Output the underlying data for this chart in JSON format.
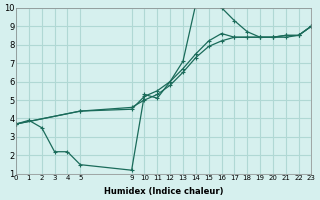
{
  "xlabel": "Humidex (Indice chaleur)",
  "ylabel": "",
  "xlim": [
    0,
    23
  ],
  "ylim": [
    1,
    10
  ],
  "xticks": [
    0,
    1,
    2,
    3,
    4,
    5,
    9,
    10,
    11,
    12,
    13,
    14,
    15,
    16,
    17,
    18,
    19,
    20,
    21,
    22,
    23
  ],
  "yticks": [
    1,
    2,
    3,
    4,
    5,
    6,
    7,
    8,
    9,
    10
  ],
  "bg_color": "#d6f0ee",
  "grid_color": "#b0d8d4",
  "line_color": "#1a6b5a",
  "line1": {
    "x": [
      0,
      1,
      2,
      3,
      4,
      5,
      9,
      10,
      11,
      12,
      13,
      14,
      15,
      16,
      17,
      18,
      19,
      20,
      21,
      22,
      23
    ],
    "y": [
      3.7,
      3.9,
      3.5,
      2.2,
      2.2,
      1.5,
      1.2,
      5.3,
      5.1,
      6.0,
      7.1,
      10.2,
      10.3,
      10.0,
      9.3,
      8.7,
      8.4,
      8.4,
      8.4,
      8.5,
      9.0
    ]
  },
  "line2": {
    "x": [
      0,
      5,
      9,
      10,
      11,
      12,
      13,
      14,
      15,
      16,
      17,
      18,
      19,
      20,
      21,
      22,
      23
    ],
    "y": [
      3.7,
      4.4,
      4.5,
      5.2,
      5.5,
      6.0,
      6.7,
      7.5,
      8.2,
      8.6,
      8.4,
      8.4,
      8.4,
      8.4,
      8.5,
      8.5,
      9.0
    ]
  },
  "line3": {
    "x": [
      0,
      5,
      9,
      10,
      11,
      12,
      13,
      14,
      15,
      16,
      17,
      18,
      19,
      20,
      21,
      22,
      23
    ],
    "y": [
      3.7,
      4.4,
      4.6,
      5.0,
      5.3,
      5.8,
      6.5,
      7.3,
      7.9,
      8.2,
      8.4,
      8.4,
      8.4,
      8.4,
      8.5,
      8.5,
      9.0
    ]
  }
}
